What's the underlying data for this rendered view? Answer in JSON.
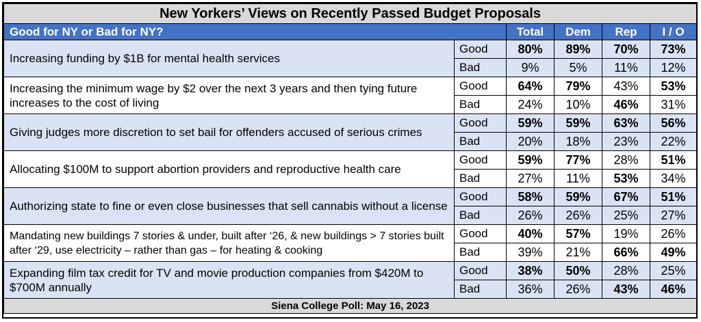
{
  "title": "New Yorkers’ Views on Recently Passed Budget Proposals",
  "header": {
    "question": "Good for NY or Bad for NY?",
    "columns": [
      "Total",
      "Dem",
      "Rep",
      "I / O"
    ]
  },
  "labels": {
    "good": "Good",
    "bad": "Bad"
  },
  "rows": [
    {
      "proposal": "Increasing funding by $1B for mental health services",
      "good": [
        "80%",
        "89%",
        "70%",
        "73%"
      ],
      "bad": [
        "9%",
        "5%",
        "11%",
        "12%"
      ]
    },
    {
      "proposal": "Increasing the minimum wage by $2 over the next 3 years and then tying future increases to the cost of living",
      "good": [
        "64%",
        "79%",
        "43%",
        "53%"
      ],
      "bad": [
        "24%",
        "10%",
        "46%",
        "31%"
      ]
    },
    {
      "proposal": "Giving judges more discretion to set bail for offenders accused of serious crimes",
      "good": [
        "59%",
        "59%",
        "63%",
        "56%"
      ],
      "bad": [
        "20%",
        "18%",
        "23%",
        "22%"
      ]
    },
    {
      "proposal": "Allocating $100M to support abortion providers and reproductive health care",
      "good": [
        "59%",
        "77%",
        "28%",
        "51%"
      ],
      "bad": [
        "27%",
        "11%",
        "53%",
        "34%"
      ]
    },
    {
      "proposal": "Authorizing state to fine or even close businesses that sell cannabis without a license",
      "good": [
        "58%",
        "59%",
        "67%",
        "51%"
      ],
      "bad": [
        "26%",
        "26%",
        "25%",
        "27%"
      ]
    },
    {
      "proposal": "Mandating new buildings 7 stories & under, built after ‘26, & new buildings > 7 stories built after ‘29, use electricity – rather than gas – for heating & cooking",
      "good": [
        "40%",
        "57%",
        "19%",
        "26%"
      ],
      "bad": [
        "39%",
        "21%",
        "66%",
        "49%"
      ]
    },
    {
      "proposal": "Expanding film tax credit for TV and movie production companies from $420M to $700M annually",
      "good": [
        "38%",
        "50%",
        "28%",
        "25%"
      ],
      "bad": [
        "36%",
        "26%",
        "43%",
        "46%"
      ]
    }
  ],
  "footer": "Siena College Poll: May 16, 2023"
}
